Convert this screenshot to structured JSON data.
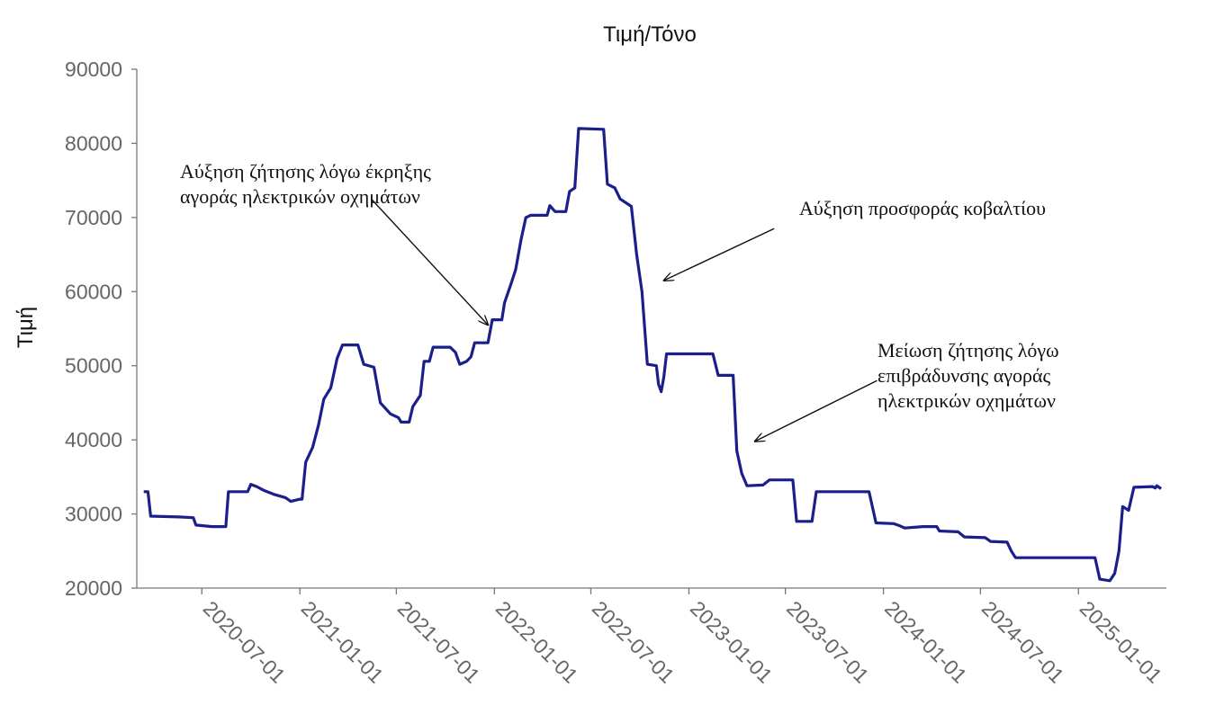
{
  "chart_data": {
    "type": "line",
    "title": "Τιμή/Τόνο",
    "xlabel": "",
    "ylabel": "Τιμή",
    "ylim": [
      20000,
      90000
    ],
    "xlim": [
      "2020-03-01",
      "2025-06-15"
    ],
    "yticks": [
      "20000",
      "30000",
      "40000",
      "50000",
      "60000",
      "70000",
      "80000",
      "90000"
    ],
    "xticks": [
      "2020-07-01",
      "2021-01-01",
      "2021-07-01",
      "2022-01-01",
      "2022-07-01",
      "2023-01-01",
      "2023-07-01",
      "2024-01-01",
      "2024-07-01",
      "2025-01-01"
    ],
    "grid": false,
    "series": [
      {
        "color": "#1a1f8c",
        "points": [
          [
            "2020-03-14",
            33000
          ],
          [
            "2020-03-22",
            33000
          ],
          [
            "2020-03-27",
            29700
          ],
          [
            "2020-05-20",
            29600
          ],
          [
            "2020-06-15",
            29500
          ],
          [
            "2020-06-20",
            28500
          ],
          [
            "2020-07-20",
            28300
          ],
          [
            "2020-08-15",
            28300
          ],
          [
            "2020-08-20",
            33000
          ],
          [
            "2020-09-25",
            33000
          ],
          [
            "2020-10-01",
            34000
          ],
          [
            "2020-10-12",
            33700
          ],
          [
            "2020-10-25",
            33200
          ],
          [
            "2020-11-15",
            32600
          ],
          [
            "2020-12-05",
            32200
          ],
          [
            "2020-12-15",
            31700
          ],
          [
            "2021-01-01",
            32000
          ],
          [
            "2021-01-05",
            32000
          ],
          [
            "2021-01-12",
            37000
          ],
          [
            "2021-01-25",
            39000
          ],
          [
            "2021-02-05",
            42000
          ],
          [
            "2021-02-15",
            45500
          ],
          [
            "2021-02-28",
            47000
          ],
          [
            "2021-03-12",
            51000
          ],
          [
            "2021-03-22",
            52800
          ],
          [
            "2021-04-20",
            52800
          ],
          [
            "2021-05-01",
            50200
          ],
          [
            "2021-05-20",
            49800
          ],
          [
            "2021-06-01",
            45000
          ],
          [
            "2021-06-20",
            43500
          ],
          [
            "2021-07-05",
            43000
          ],
          [
            "2021-07-10",
            42400
          ],
          [
            "2021-07-25",
            42400
          ],
          [
            "2021-08-01",
            44500
          ],
          [
            "2021-08-15",
            46000
          ],
          [
            "2021-08-22",
            50600
          ],
          [
            "2021-09-01",
            50600
          ],
          [
            "2021-09-08",
            52500
          ],
          [
            "2021-10-10",
            52500
          ],
          [
            "2021-10-20",
            51800
          ],
          [
            "2021-10-28",
            50200
          ],
          [
            "2021-11-10",
            50600
          ],
          [
            "2021-11-18",
            51200
          ],
          [
            "2021-11-25",
            53100
          ],
          [
            "2021-12-20",
            53100
          ],
          [
            "2021-12-28",
            56200
          ],
          [
            "2022-01-15",
            56200
          ],
          [
            "2022-01-20",
            58500
          ],
          [
            "2022-02-01",
            61000
          ],
          [
            "2022-02-10",
            63000
          ],
          [
            "2022-02-20",
            67000
          ],
          [
            "2022-03-01",
            70000
          ],
          [
            "2022-03-10",
            70300
          ],
          [
            "2022-04-10",
            70300
          ],
          [
            "2022-04-15",
            71600
          ],
          [
            "2022-04-25",
            70800
          ],
          [
            "2022-05-15",
            70800
          ],
          [
            "2022-05-22",
            73500
          ],
          [
            "2022-06-01",
            74000
          ],
          [
            "2022-06-08",
            82000
          ],
          [
            "2022-07-25",
            81900
          ],
          [
            "2022-08-01",
            74500
          ],
          [
            "2022-08-15",
            74000
          ],
          [
            "2022-08-25",
            72500
          ],
          [
            "2022-09-15",
            71500
          ],
          [
            "2022-09-25",
            65000
          ],
          [
            "2022-10-05",
            60000
          ],
          [
            "2022-10-15",
            50200
          ],
          [
            "2022-11-01",
            50000
          ],
          [
            "2022-11-05",
            47500
          ],
          [
            "2022-11-10",
            46500
          ],
          [
            "2022-11-15",
            48500
          ],
          [
            "2022-11-20",
            51600
          ],
          [
            "2023-02-15",
            51600
          ],
          [
            "2023-02-25",
            48700
          ],
          [
            "2023-03-25",
            48700
          ],
          [
            "2023-04-01",
            38500
          ],
          [
            "2023-04-10",
            35500
          ],
          [
            "2023-04-20",
            33800
          ],
          [
            "2023-05-20",
            33900
          ],
          [
            "2023-06-01",
            34600
          ],
          [
            "2023-07-15",
            34600
          ],
          [
            "2023-07-22",
            29000
          ],
          [
            "2023-08-20",
            29000
          ],
          [
            "2023-08-28",
            33000
          ],
          [
            "2023-12-05",
            33000
          ],
          [
            "2023-12-18",
            28800
          ],
          [
            "2024-01-20",
            28700
          ],
          [
            "2024-02-01",
            28400
          ],
          [
            "2024-02-10",
            28100
          ],
          [
            "2024-03-15",
            28300
          ],
          [
            "2024-04-10",
            28300
          ],
          [
            "2024-04-15",
            27700
          ],
          [
            "2024-05-20",
            27600
          ],
          [
            "2024-06-01",
            26900
          ],
          [
            "2024-07-10",
            26800
          ],
          [
            "2024-07-20",
            26300
          ],
          [
            "2024-08-20",
            26200
          ],
          [
            "2024-08-28",
            25000
          ],
          [
            "2024-09-05",
            24100
          ],
          [
            "2024-10-01",
            24100
          ],
          [
            "2024-12-31",
            24100
          ],
          [
            "2025-02-01",
            24100
          ],
          [
            "2025-02-10",
            21200
          ],
          [
            "2025-03-01",
            21000
          ],
          [
            "2025-03-10",
            22000
          ],
          [
            "2025-03-18",
            25000
          ],
          [
            "2025-03-25",
            31000
          ],
          [
            "2025-04-05",
            30500
          ],
          [
            "2025-04-15",
            33600
          ],
          [
            "2025-05-20",
            33700
          ],
          [
            "2025-05-25",
            33500
          ],
          [
            "2025-05-28",
            33800
          ],
          [
            "2025-06-05",
            33400
          ]
        ]
      }
    ],
    "annotations": [
      {
        "lines": [
          "Αύξηση ζήτησης λόγω έκρηξης",
          "αγοράς ηλεκτρικών οχημάτων"
        ],
        "target": [
          "2021-12-20",
          55500
        ],
        "start": [
          "2021-05-15",
          72500
        ]
      },
      {
        "lines": [
          "Αύξηση προσφοράς κοβαλτίου"
        ],
        "target": [
          "2022-11-15",
          61500
        ],
        "start": [
          "2023-06-10",
          68500
        ]
      },
      {
        "lines": [
          "Μείωση ζήτησης λόγω",
          "επιβράδυνσης αγοράς",
          "ηλεκτρικών οχημάτων"
        ],
        "target": [
          "2023-05-05",
          39800
        ],
        "start": [
          "2023-12-20",
          48000
        ]
      }
    ]
  }
}
